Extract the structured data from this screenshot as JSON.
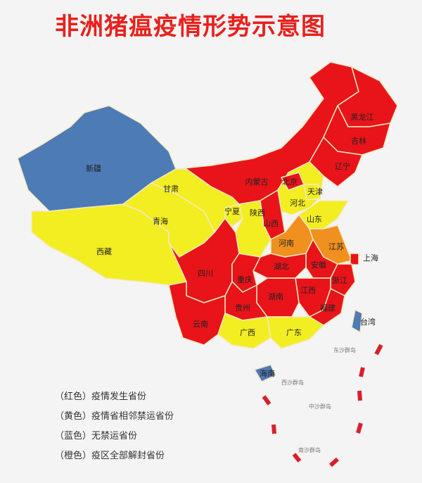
{
  "title": "非洲猪瘟疫情形势示意图",
  "colors": {
    "red": "#e8141a",
    "yellow": "#f2ee22",
    "blue": "#4d7bb6",
    "orange": "#f0901f",
    "dash": "#d8202a"
  },
  "provinces": {
    "xinjiang": {
      "name": "新疆",
      "status": "blue"
    },
    "xizang": {
      "name": "西藏",
      "status": "yellow"
    },
    "qinghai": {
      "name": "青海",
      "status": "yellow"
    },
    "gansu": {
      "name": "甘肃",
      "status": "yellow"
    },
    "neimenggu": {
      "name": "内蒙古",
      "status": "red"
    },
    "heilongjiang": {
      "name": "黑龙江",
      "status": "red"
    },
    "jilin": {
      "name": "吉林",
      "status": "red"
    },
    "liaoning": {
      "name": "辽宁",
      "status": "red"
    },
    "beijing": {
      "name": "北京",
      "status": "red"
    },
    "tianjin": {
      "name": "天津",
      "status": "yellow"
    },
    "hebei": {
      "name": "河北",
      "status": "yellow"
    },
    "shanxi": {
      "name": "山西",
      "status": "red"
    },
    "ningxia": {
      "name": "宁夏",
      "status": "yellow"
    },
    "shaanxi": {
      "name": "陕西",
      "status": "yellow"
    },
    "shandong": {
      "name": "山东",
      "status": "yellow"
    },
    "henan": {
      "name": "河南",
      "status": "orange"
    },
    "jiangsu": {
      "name": "江苏",
      "status": "orange"
    },
    "shanghai": {
      "name": "上海",
      "status": "red"
    },
    "anhui": {
      "name": "安徽",
      "status": "red"
    },
    "hubei": {
      "name": "湖北",
      "status": "red"
    },
    "chongqing": {
      "name": "重庆",
      "status": "red"
    },
    "sichuan": {
      "name": "四川",
      "status": "red"
    },
    "zhejiang": {
      "name": "浙江",
      "status": "red"
    },
    "jiangxi": {
      "name": "江西",
      "status": "red"
    },
    "hunan": {
      "name": "湖南",
      "status": "red"
    },
    "fujian": {
      "name": "福建",
      "status": "red"
    },
    "guizhou": {
      "name": "贵州",
      "status": "red"
    },
    "yunnan": {
      "name": "云南",
      "status": "red"
    },
    "guangxi": {
      "name": "广西",
      "status": "yellow"
    },
    "guangdong": {
      "name": "广东",
      "status": "yellow"
    },
    "hainan": {
      "name": "海南",
      "status": "blue"
    },
    "taiwan": {
      "name": "台湾",
      "status": "blue"
    }
  },
  "islands": [
    "东沙群岛",
    "西沙群岛",
    "中沙群岛",
    "南沙群岛"
  ],
  "legend": [
    {
      "color_label": "（红色）",
      "text": "疫情发生省份",
      "status": "red"
    },
    {
      "color_label": "（黄色）",
      "text": "疫情省相邻禁运省份",
      "status": "yellow"
    },
    {
      "color_label": "（蓝色）",
      "text": "无禁运省份",
      "status": "blue"
    },
    {
      "color_label": "（橙色）",
      "text": "疫区全部解封省份",
      "status": "orange"
    }
  ]
}
